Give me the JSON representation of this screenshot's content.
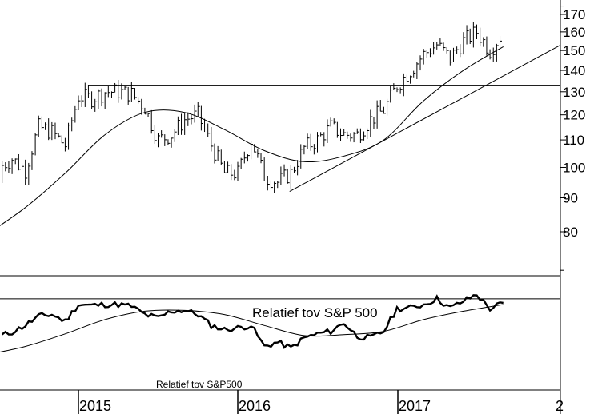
{
  "chart_data": {
    "type": "line",
    "x_range": [
      "2014-06",
      "2017-11"
    ],
    "x_ticks": [
      "2015",
      "2016",
      "2017",
      "2"
    ],
    "price_panel": {
      "y_scale": "log",
      "ylim": [
        70,
        175
      ],
      "y_ticks": [
        170,
        160,
        150,
        140,
        130,
        120,
        110,
        100,
        90,
        80
      ],
      "series": [
        {
          "style": "ohlc-bars",
          "x": [
            "2014-06",
            "2014-07",
            "2014-08",
            "2014-09",
            "2014-10",
            "2014-11",
            "2014-12",
            "2015-01",
            "2015-02",
            "2015-03",
            "2015-04",
            "2015-05",
            "2015-06",
            "2015-07",
            "2015-08",
            "2015-09",
            "2015-10",
            "2015-11",
            "2015-12",
            "2016-01",
            "2016-02",
            "2016-03",
            "2016-04",
            "2016-05",
            "2016-06",
            "2016-07",
            "2016-08",
            "2016-09",
            "2016-10",
            "2016-11",
            "2016-12",
            "2017-01",
            "2017-02",
            "2017-03",
            "2017-04",
            "2017-05",
            "2017-06",
            "2017-07",
            "2017-08",
            "2017-09"
          ],
          "y": [
            95,
            100,
            103,
            99,
            115,
            113,
            108,
            128,
            127,
            130,
            130,
            129,
            123,
            110,
            112,
            118,
            120,
            108,
            98,
            98,
            110,
            97,
            95,
            98,
            107,
            110,
            115,
            112,
            112,
            118,
            122,
            133,
            140,
            148,
            153,
            146,
            155,
            160,
            150,
            160
          ]
        },
        {
          "style": "moving-average",
          "x": [
            "2014-06",
            "2014-09",
            "2014-12",
            "2015-03",
            "2015-06",
            "2015-09",
            "2015-12",
            "2016-03",
            "2016-06",
            "2016-09",
            "2016-12",
            "2017-03",
            "2017-06",
            "2017-09"
          ],
          "y": [
            79,
            87,
            98,
            112,
            121,
            121,
            114,
            106,
            102,
            104,
            110,
            126,
            140,
            152
          ]
        }
      ],
      "horizontal_line": {
        "y": 133,
        "x_from": "2015-01",
        "x_to": "2017-11"
      },
      "trendline": {
        "x_from": "2016-04",
        "y_from": 92,
        "x_to": "2017-11",
        "y_to": 158
      }
    },
    "relative_panel": {
      "annotation": "Relatief tov S&P 500",
      "footer_label": "Relatief tov S&P500",
      "ylim": [
        0,
        100
      ],
      "horizontal_line": {
        "y": 82
      },
      "series": [
        {
          "style": "line",
          "x": [
            "2014-06",
            "2014-07",
            "2014-08",
            "2014-09",
            "2014-10",
            "2014-11",
            "2014-12",
            "2015-01",
            "2015-02",
            "2015-03",
            "2015-04",
            "2015-05",
            "2015-06",
            "2015-07",
            "2015-08",
            "2015-09",
            "2015-10",
            "2015-11",
            "2015-12",
            "2016-01",
            "2016-02",
            "2016-03",
            "2016-04",
            "2016-05",
            "2016-06",
            "2016-07",
            "2016-08",
            "2016-09",
            "2016-10",
            "2016-11",
            "2016-12",
            "2017-01",
            "2017-02",
            "2017-03",
            "2017-04",
            "2017-05",
            "2017-06",
            "2017-07",
            "2017-08",
            "2017-09"
          ],
          "y": [
            35,
            42,
            47,
            55,
            66,
            68,
            60,
            80,
            79,
            80,
            80,
            78,
            68,
            64,
            72,
            73,
            68,
            55,
            50,
            52,
            55,
            30,
            35,
            28,
            40,
            45,
            48,
            58,
            42,
            40,
            48,
            75,
            76,
            80,
            87,
            76,
            84,
            92,
            75,
            82
          ]
        },
        {
          "style": "moving-average",
          "x": [
            "2014-06",
            "2014-09",
            "2014-12",
            "2015-03",
            "2015-06",
            "2015-09",
            "2015-12",
            "2016-03",
            "2016-06",
            "2016-09",
            "2016-12",
            "2017-03",
            "2017-06",
            "2017-09"
          ],
          "y": [
            20,
            30,
            45,
            62,
            72,
            73,
            68,
            55,
            43,
            44,
            48,
            62,
            72,
            80
          ]
        }
      ]
    }
  }
}
